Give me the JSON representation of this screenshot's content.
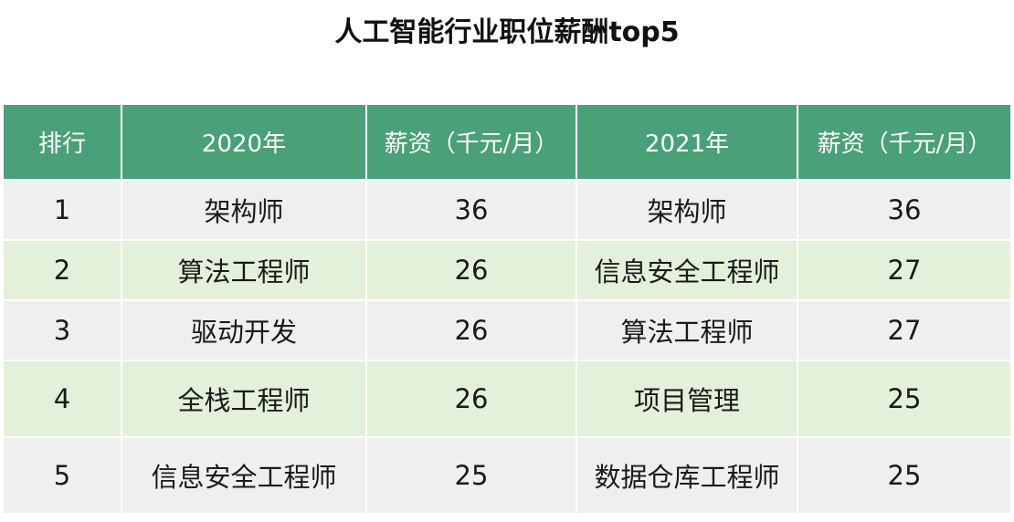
{
  "title": "人工智能行业职位薪酬top5",
  "table": {
    "headers": [
      "排行",
      "2020年",
      "薪资（千元/月）",
      "2021年",
      "薪资（千元/月）"
    ],
    "rows": [
      {
        "rank": "1",
        "job_2020": "架构师",
        "salary_2020": "36",
        "job_2021": "架构师",
        "salary_2021": "36"
      },
      {
        "rank": "2",
        "job_2020": "算法工程师",
        "salary_2020": "26",
        "job_2021": "信息安全工程师",
        "salary_2021": "27"
      },
      {
        "rank": "3",
        "job_2020": "驱动开发",
        "salary_2020": "26",
        "job_2021": "算法工程师",
        "salary_2021": "27"
      },
      {
        "rank": "4",
        "job_2020": "全栈工程师",
        "salary_2020": "26",
        "job_2021": "项目管理",
        "salary_2021": "25"
      },
      {
        "rank": "5",
        "job_2020": "信息安全工程师",
        "salary_2020": "25",
        "job_2021": "数据仓库工程师",
        "salary_2021": "25"
      }
    ]
  },
  "colors": {
    "header_bg": "#4aa078",
    "header_text": "#ffffff",
    "row_odd_bg": "#efefef",
    "row_even_bg": "#e3f0da"
  }
}
